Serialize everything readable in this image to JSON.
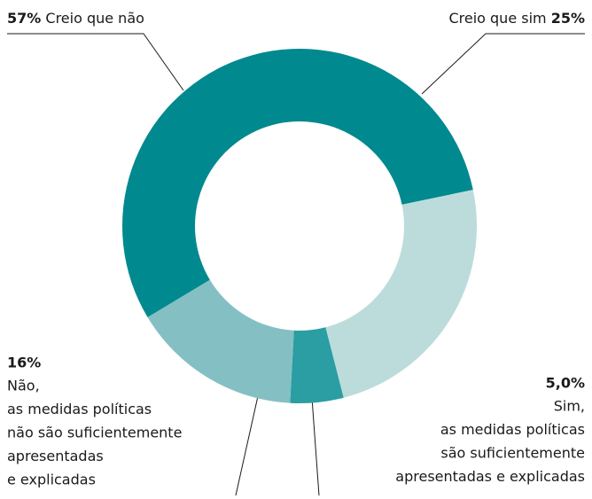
{
  "chart_data": {
    "type": "donut",
    "categories": [
      [
        "Creio que não"
      ],
      [
        "Creio que sim"
      ],
      [
        "Sim,",
        "as medidas políticas",
        "são suficientemente",
        "apresentadas e explicadas"
      ],
      [
        "Não,",
        "as medidas políticas",
        "não são suficientemente",
        "apresentadas",
        "e explicadas"
      ]
    ],
    "values": [
      57,
      25,
      5,
      16
    ],
    "value_labels": [
      "57%",
      "25%",
      "5,0%",
      "16%"
    ],
    "colors": [
      "#00898e",
      "#bcdcdc",
      "#2a9ea2",
      "#84bfc4"
    ]
  }
}
